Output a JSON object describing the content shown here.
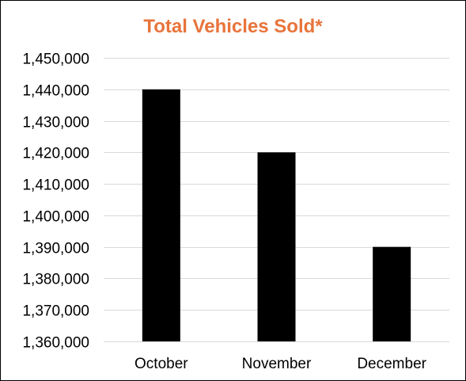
{
  "chart_data": {
    "type": "bar",
    "title": "Total Vehicles Sold*",
    "xlabel": "",
    "ylabel": "",
    "categories": [
      "October",
      "November",
      "December"
    ],
    "values": [
      1440000,
      1420000,
      1390000
    ],
    "ylim": [
      1360000,
      1450000
    ],
    "ytick_step": 10000,
    "ytick_labels": [
      "1,360,000",
      "1,370,000",
      "1,380,000",
      "1,390,000",
      "1,400,000",
      "1,410,000",
      "1,420,000",
      "1,430,000",
      "1,440,000",
      "1,450,000"
    ],
    "grid": true,
    "legend": "none"
  },
  "colors": {
    "title": "#E8743B",
    "bar": "#000000",
    "grid": "#D9D9D9",
    "text": "#000000"
  }
}
